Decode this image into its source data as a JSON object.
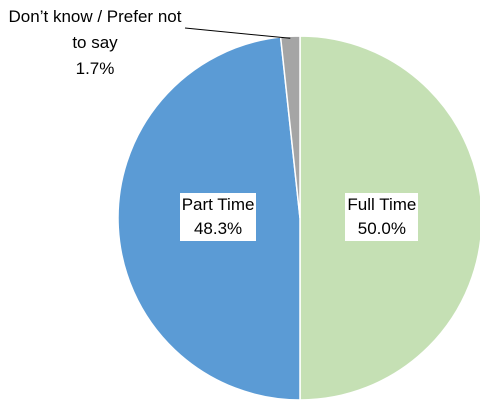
{
  "chart_data": {
    "type": "pie",
    "categories": [
      "Full Time",
      "Part Time",
      "Don’t know / Prefer not to say"
    ],
    "values": [
      50.0,
      48.3,
      1.7
    ],
    "value_labels": [
      "50.0%",
      "48.3%",
      "1.7%"
    ],
    "colors": [
      "#c5e0b4",
      "#5b9bd5",
      "#a5a5a5"
    ]
  }
}
